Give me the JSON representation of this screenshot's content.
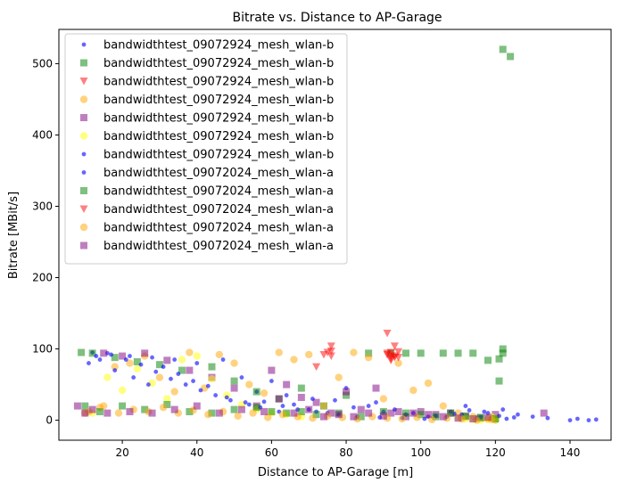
{
  "chart_data": {
    "type": "scatter",
    "title": "Bitrate vs. Distance to AP-Garage",
    "xlabel": "Distance to AP-Garage [m]",
    "ylabel": "Bitrate [MBit/s]",
    "xlim": [
      3,
      151
    ],
    "ylim": [
      -28,
      548
    ],
    "xticks": [
      20,
      40,
      60,
      80,
      100,
      120,
      140
    ],
    "yticks": [
      0,
      100,
      200,
      300,
      400,
      500
    ],
    "grid": false,
    "legend_position": "top-left",
    "series": [
      {
        "name": "bandwidthtest_09072924_mesh_wlan-b",
        "marker": "dot",
        "color": "#0000ff",
        "points": [
          [
            12,
            95
          ],
          [
            16,
            94
          ],
          [
            22,
            90
          ],
          [
            28,
            88
          ],
          [
            34,
            85
          ],
          [
            40,
            80
          ],
          [
            47,
            85
          ],
          [
            52,
            60
          ],
          [
            56,
            40
          ],
          [
            60,
            55
          ],
          [
            64,
            35
          ],
          [
            70,
            15
          ],
          [
            75,
            10
          ],
          [
            80,
            45
          ],
          [
            86,
            20
          ],
          [
            90,
            12
          ],
          [
            96,
            8
          ],
          [
            102,
            5
          ],
          [
            108,
            12
          ],
          [
            112,
            20
          ],
          [
            115,
            3
          ],
          [
            118,
            10
          ],
          [
            122,
            15
          ],
          [
            126,
            8
          ],
          [
            130,
            5
          ],
          [
            134,
            3
          ],
          [
            140,
            0
          ],
          [
            142,
            2
          ],
          [
            145,
            0
          ],
          [
            147,
            1
          ]
        ]
      },
      {
        "name": "bandwidthtest_09072924_mesh_wlan-b",
        "marker": "square",
        "color": "#008000",
        "points": [
          [
            9,
            95
          ],
          [
            12,
            94
          ],
          [
            18,
            88
          ],
          [
            24,
            82
          ],
          [
            30,
            78
          ],
          [
            36,
            70
          ],
          [
            44,
            75
          ],
          [
            50,
            55
          ],
          [
            56,
            40
          ],
          [
            62,
            30
          ],
          [
            68,
            45
          ],
          [
            74,
            20
          ],
          [
            80,
            35
          ],
          [
            86,
            94
          ],
          [
            92,
            94
          ],
          [
            96,
            94
          ],
          [
            100,
            94
          ],
          [
            106,
            94
          ],
          [
            110,
            94
          ],
          [
            114,
            94
          ],
          [
            118,
            84
          ],
          [
            121,
            86
          ],
          [
            122,
            100
          ],
          [
            122,
            94
          ],
          [
            121,
            55
          ],
          [
            122,
            520
          ],
          [
            124,
            510
          ]
        ]
      },
      {
        "name": "bandwidthtest_09072924_mesh_wlan-b",
        "marker": "triangle",
        "color": "#ff0000",
        "points": [
          [
            72,
            75
          ],
          [
            74,
            92
          ],
          [
            76,
            97
          ],
          [
            76,
            104
          ],
          [
            91,
            94
          ],
          [
            91,
            122
          ],
          [
            92,
            90
          ],
          [
            93,
            88
          ],
          [
            93,
            104
          ],
          [
            94,
            96
          ],
          [
            92,
            84
          ]
        ]
      },
      {
        "name": "bandwidthtest_09072924_mesh_wlan-b",
        "marker": "circle",
        "color": "#ffa500",
        "points": [
          [
            10,
            10
          ],
          [
            14,
            18
          ],
          [
            18,
            75
          ],
          [
            22,
            80
          ],
          [
            26,
            90
          ],
          [
            30,
            60
          ],
          [
            34,
            40
          ],
          [
            38,
            95
          ],
          [
            42,
            45
          ],
          [
            46,
            92
          ],
          [
            50,
            80
          ],
          [
            54,
            50
          ],
          [
            58,
            38
          ],
          [
            62,
            95
          ],
          [
            66,
            85
          ],
          [
            70,
            92
          ],
          [
            74,
            20
          ],
          [
            78,
            60
          ],
          [
            82,
            95
          ],
          [
            86,
            88
          ],
          [
            90,
            30
          ],
          [
            94,
            80
          ],
          [
            98,
            42
          ],
          [
            102,
            52
          ],
          [
            106,
            20
          ],
          [
            110,
            10
          ],
          [
            114,
            5
          ],
          [
            118,
            2
          ],
          [
            120,
            0
          ]
        ]
      },
      {
        "name": "bandwidthtest_09072924_mesh_wlan-b",
        "marker": "square",
        "color": "#800080",
        "points": [
          [
            15,
            94
          ],
          [
            20,
            90
          ],
          [
            26,
            94
          ],
          [
            32,
            84
          ],
          [
            38,
            70
          ],
          [
            44,
            60
          ],
          [
            50,
            45
          ],
          [
            56,
            20
          ],
          [
            60,
            70
          ],
          [
            64,
            50
          ],
          [
            68,
            32
          ],
          [
            72,
            25
          ],
          [
            76,
            10
          ],
          [
            80,
            40
          ],
          [
            84,
            15
          ],
          [
            88,
            45
          ],
          [
            92,
            10
          ],
          [
            96,
            5
          ],
          [
            100,
            12
          ],
          [
            104,
            8
          ],
          [
            108,
            10
          ],
          [
            112,
            5
          ],
          [
            116,
            3
          ],
          [
            120,
            8
          ],
          [
            133,
            10
          ]
        ]
      },
      {
        "name": "bandwidthtest_09072924_mesh_wlan-b",
        "marker": "circle",
        "color": "#ffff00",
        "points": [
          [
            12,
            10
          ],
          [
            16,
            60
          ],
          [
            20,
            42
          ],
          [
            24,
            72
          ],
          [
            28,
            52
          ],
          [
            32,
            30
          ],
          [
            36,
            85
          ],
          [
            40,
            90
          ],
          [
            44,
            58
          ],
          [
            48,
            35
          ],
          [
            52,
            22
          ],
          [
            56,
            15
          ],
          [
            60,
            10
          ],
          [
            64,
            8
          ],
          [
            68,
            5
          ],
          [
            110,
            3
          ],
          [
            112,
            2
          ],
          [
            114,
            1
          ],
          [
            116,
            0
          ],
          [
            118,
            1
          ],
          [
            120,
            2
          ],
          [
            119,
            5
          ]
        ]
      },
      {
        "name": "bandwidthtest_09072924_mesh_wlan-b",
        "marker": "dot",
        "color": "#0000ff",
        "points": [
          [
            11,
            80
          ],
          [
            14,
            85
          ],
          [
            18,
            70
          ],
          [
            23,
            60
          ],
          [
            27,
            50
          ],
          [
            31,
            75
          ],
          [
            35,
            65
          ],
          [
            39,
            55
          ],
          [
            43,
            48
          ],
          [
            48,
            32
          ],
          [
            53,
            25
          ],
          [
            57,
            18
          ],
          [
            62,
            12
          ],
          [
            66,
            22
          ],
          [
            71,
            30
          ],
          [
            77,
            28
          ],
          [
            82,
            18
          ],
          [
            88,
            25
          ],
          [
            93,
            15
          ],
          [
            98,
            10
          ],
          [
            104,
            6
          ],
          [
            109,
            9
          ],
          [
            113,
            14
          ],
          [
            117,
            12
          ],
          [
            121,
            6
          ],
          [
            125,
            4
          ]
        ]
      },
      {
        "name": "bandwidthtest_09072024_mesh_wlan-a",
        "marker": "dot",
        "color": "#0000ff",
        "points": [
          [
            13,
            90
          ],
          [
            17,
            92
          ],
          [
            21,
            85
          ],
          [
            25,
            78
          ],
          [
            29,
            68
          ],
          [
            33,
            58
          ],
          [
            37,
            50
          ],
          [
            41,
            42
          ],
          [
            45,
            35
          ],
          [
            49,
            28
          ],
          [
            54,
            22
          ],
          [
            58,
            26
          ],
          [
            63,
            20
          ],
          [
            67,
            15
          ],
          [
            72,
            12
          ],
          [
            78,
            8
          ],
          [
            83,
            5
          ],
          [
            89,
            4
          ],
          [
            95,
            3
          ],
          [
            101,
            2
          ],
          [
            107,
            5
          ],
          [
            111,
            8
          ],
          [
            116,
            4
          ],
          [
            123,
            2
          ]
        ]
      },
      {
        "name": "bandwidthtest_09072024_mesh_wlan-a",
        "marker": "square",
        "color": "#008000",
        "points": [
          [
            10,
            20
          ],
          [
            14,
            12
          ],
          [
            20,
            20
          ],
          [
            26,
            15
          ],
          [
            32,
            22
          ],
          [
            38,
            12
          ],
          [
            44,
            10
          ],
          [
            50,
            15
          ],
          [
            56,
            18
          ],
          [
            60,
            12
          ],
          [
            64,
            10
          ],
          [
            68,
            12
          ],
          [
            72,
            8
          ],
          [
            78,
            10
          ],
          [
            84,
            5
          ],
          [
            90,
            12
          ],
          [
            96,
            10
          ],
          [
            100,
            8
          ],
          [
            104,
            5
          ],
          [
            108,
            10
          ],
          [
            112,
            6
          ],
          [
            116,
            4
          ],
          [
            120,
            2
          ]
        ]
      },
      {
        "name": "bandwidthtest_09072024_mesh_wlan-a",
        "marker": "triangle",
        "color": "#ff0000",
        "points": [
          [
            75,
            95
          ],
          [
            76,
            90
          ],
          [
            91,
            92
          ],
          [
            92,
            86
          ],
          [
            93,
            90
          ],
          [
            94,
            88
          ],
          [
            92,
            95
          ]
        ]
      },
      {
        "name": "bandwidthtest_09072024_mesh_wlan-a",
        "marker": "circle",
        "color": "#ffa500",
        "points": [
          [
            11,
            12
          ],
          [
            15,
            20
          ],
          [
            19,
            10
          ],
          [
            23,
            15
          ],
          [
            27,
            12
          ],
          [
            31,
            18
          ],
          [
            35,
            10
          ],
          [
            39,
            14
          ],
          [
            43,
            8
          ],
          [
            47,
            12
          ],
          [
            51,
            6
          ],
          [
            55,
            10
          ],
          [
            59,
            4
          ],
          [
            63,
            8
          ],
          [
            67,
            5
          ],
          [
            71,
            3
          ],
          [
            75,
            6
          ],
          [
            79,
            4
          ],
          [
            83,
            2
          ],
          [
            87,
            5
          ],
          [
            91,
            3
          ],
          [
            95,
            2
          ],
          [
            99,
            4
          ],
          [
            103,
            1
          ],
          [
            107,
            3
          ],
          [
            111,
            2
          ],
          [
            115,
            0
          ],
          [
            119,
            1
          ]
        ]
      },
      {
        "name": "bandwidthtest_09072024_mesh_wlan-a",
        "marker": "square",
        "color": "#800080",
        "points": [
          [
            8,
            20
          ],
          [
            10,
            10
          ],
          [
            12,
            15
          ],
          [
            16,
            10
          ],
          [
            22,
            12
          ],
          [
            28,
            10
          ],
          [
            34,
            15
          ],
          [
            40,
            20
          ],
          [
            46,
            10
          ],
          [
            52,
            15
          ],
          [
            58,
            12
          ],
          [
            62,
            30
          ],
          [
            66,
            10
          ],
          [
            70,
            15
          ],
          [
            74,
            5
          ],
          [
            78,
            8
          ],
          [
            82,
            5
          ],
          [
            86,
            10
          ],
          [
            90,
            6
          ],
          [
            94,
            12
          ],
          [
            98,
            10
          ],
          [
            102,
            8
          ],
          [
            106,
            5
          ],
          [
            110,
            3
          ],
          [
            114,
            2
          ],
          [
            118,
            4
          ]
        ]
      }
    ]
  }
}
